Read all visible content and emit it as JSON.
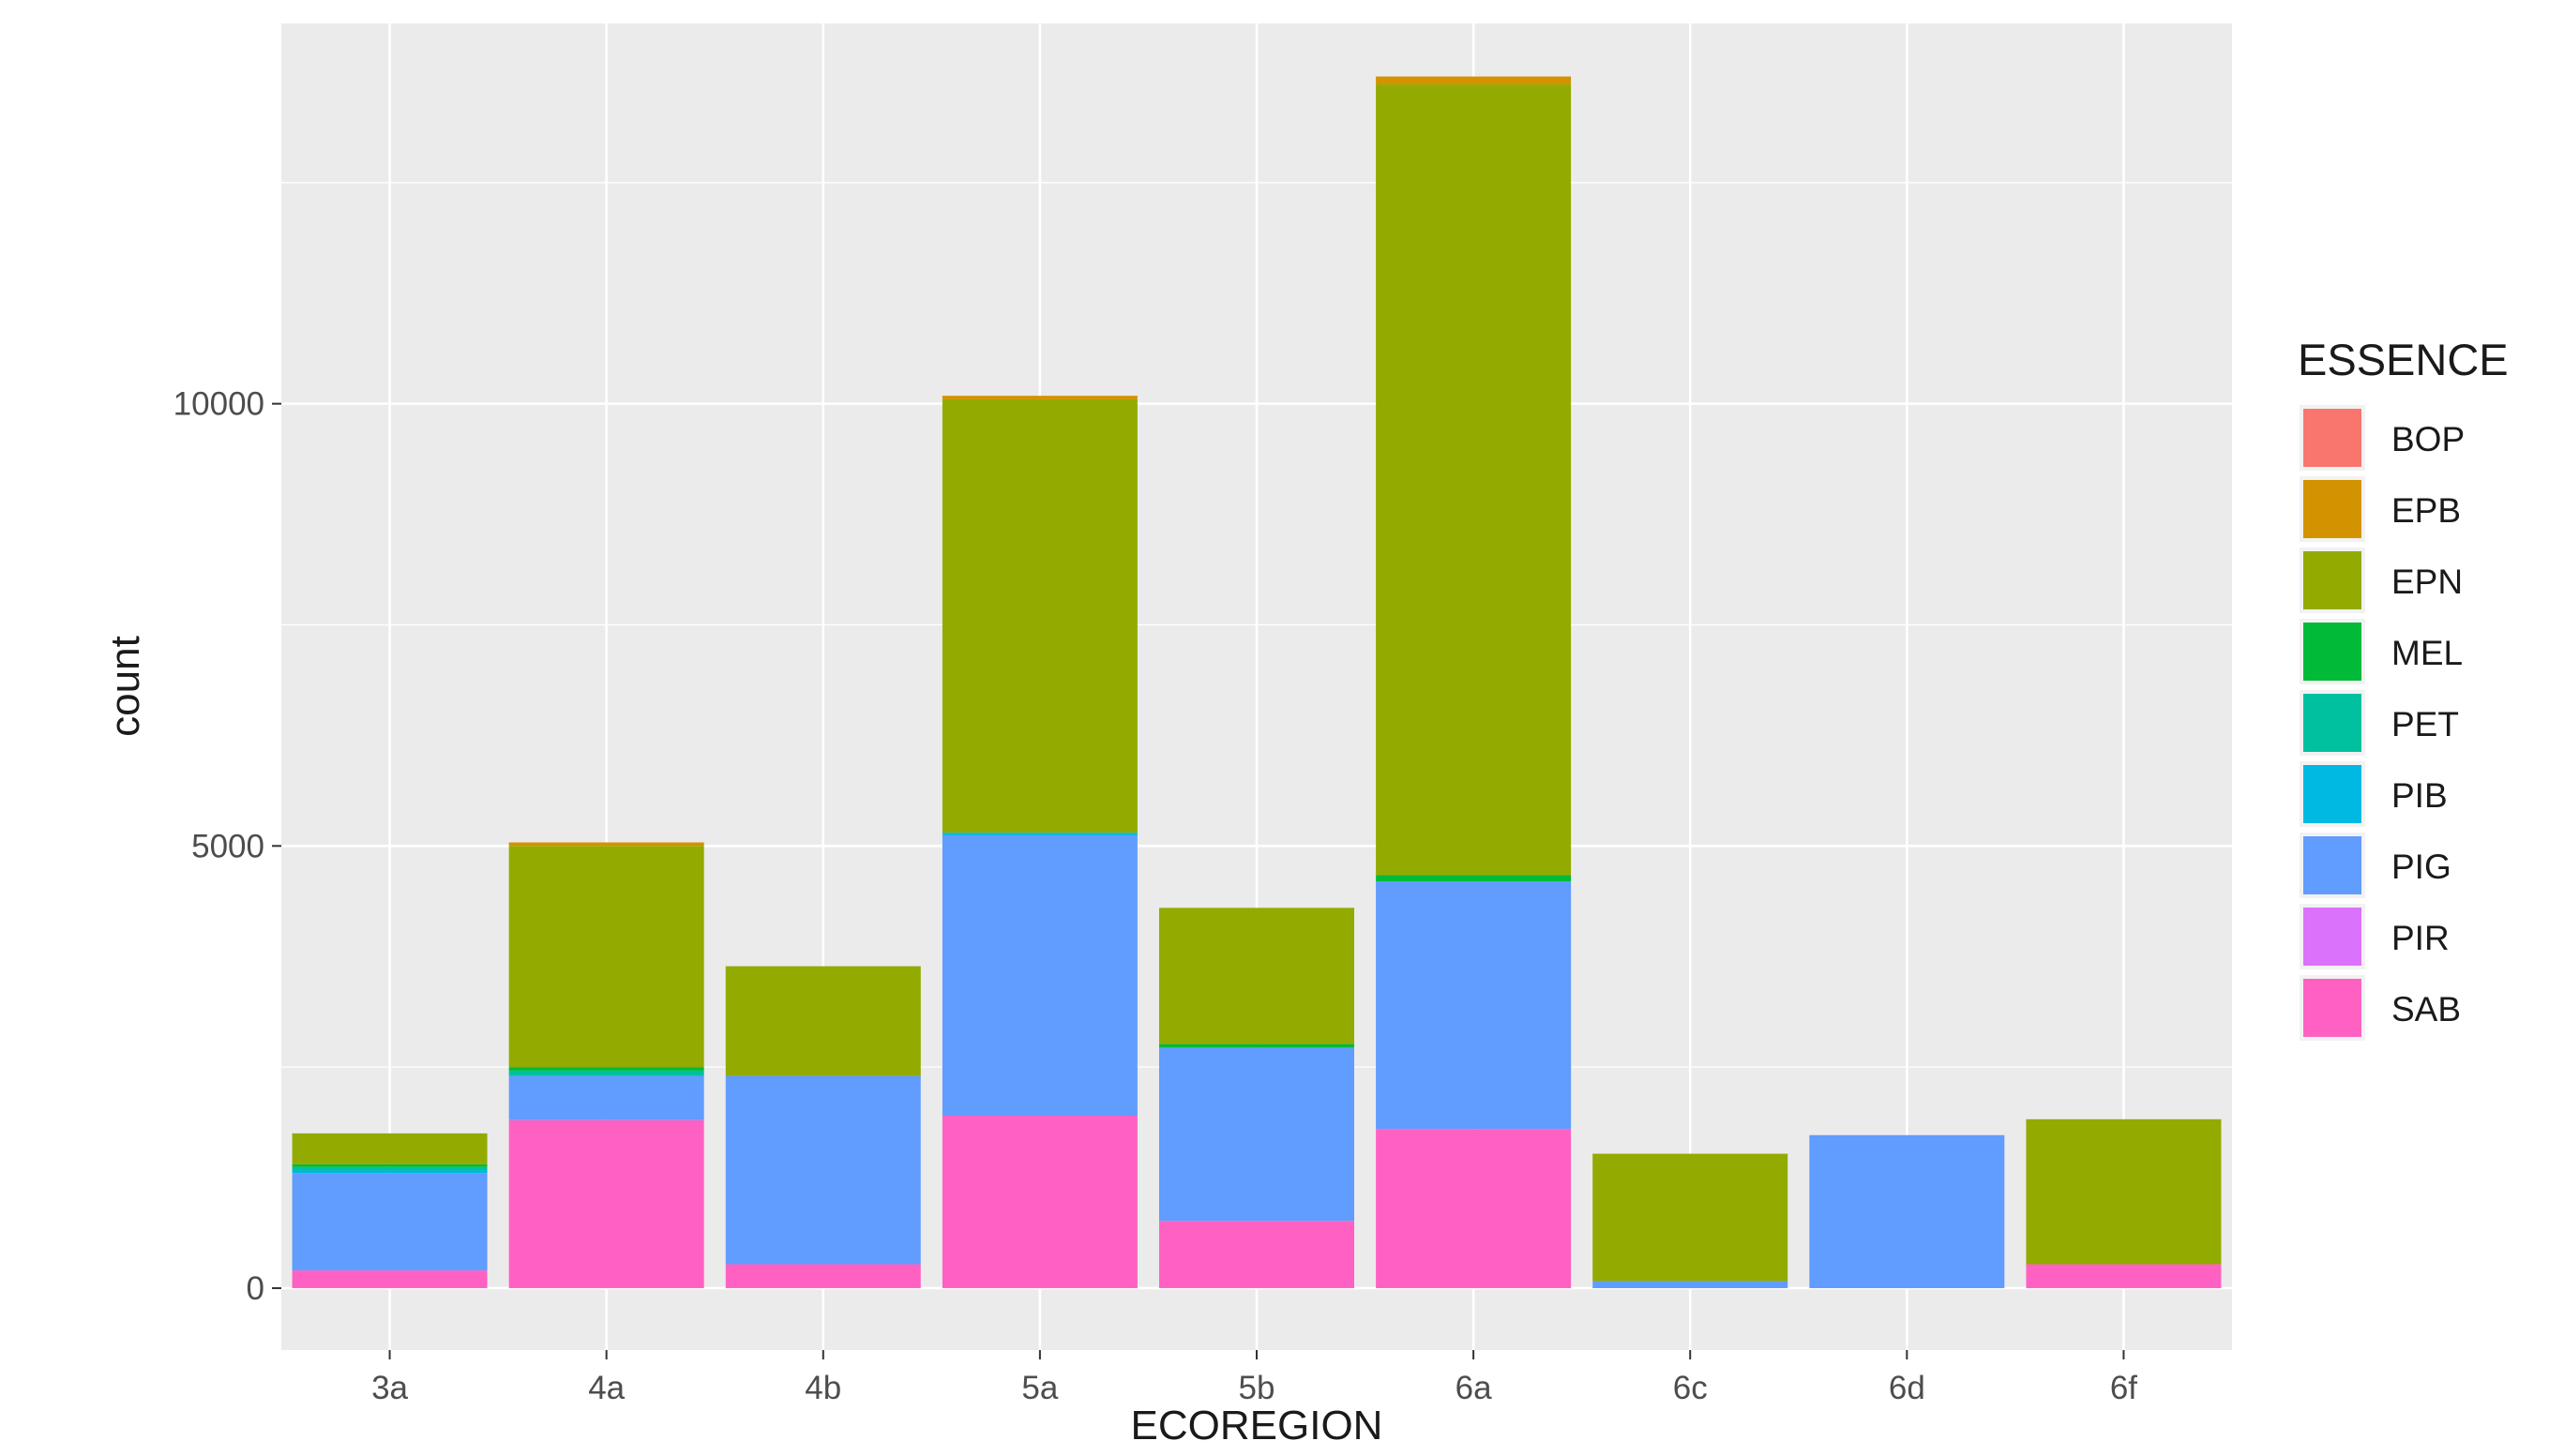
{
  "chart_data": {
    "type": "bar",
    "stacked": true,
    "title": "",
    "xlabel": "ECOREGION",
    "ylabel": "count",
    "categories": [
      "3a",
      "4a",
      "4b",
      "5a",
      "5b",
      "6a",
      "6c",
      "6d",
      "6f"
    ],
    "y_ticks": [
      0,
      5000,
      10000
    ],
    "y_tick_labels": [
      "0",
      "5000",
      "10000"
    ],
    "ylim": [
      -700,
      14300
    ],
    "grid": true,
    "legend": {
      "title": "ESSENCE",
      "position": "right",
      "entries": [
        "BOP",
        "EPB",
        "EPN",
        "MEL",
        "PET",
        "PIB",
        "PIG",
        "PIR",
        "SAB"
      ]
    },
    "colors": {
      "BOP": "#F8766D",
      "EPB": "#D39200",
      "EPN": "#93AA00",
      "MEL": "#00BA38",
      "PET": "#00C19F",
      "PIB": "#00B9E3",
      "PIG": "#619CFF",
      "PIR": "#DB72FB",
      "SAB": "#FF61C3"
    },
    "series": [
      {
        "name": "SAB",
        "values": [
          200,
          1900,
          270,
          1950,
          760,
          1800,
          0,
          0,
          270
        ]
      },
      {
        "name": "PIR",
        "values": [
          0,
          0,
          0,
          0,
          0,
          0,
          0,
          0,
          0
        ]
      },
      {
        "name": "PIG",
        "values": [
          1100,
          500,
          2130,
          3170,
          1960,
          2800,
          80,
          1730,
          0
        ]
      },
      {
        "name": "PIB",
        "values": [
          30,
          0,
          0,
          30,
          0,
          0,
          0,
          0,
          0
        ]
      },
      {
        "name": "PET",
        "values": [
          40,
          60,
          0,
          0,
          0,
          0,
          0,
          0,
          0
        ]
      },
      {
        "name": "MEL",
        "values": [
          30,
          40,
          0,
          0,
          40,
          70,
          0,
          0,
          0
        ]
      },
      {
        "name": "EPN",
        "values": [
          350,
          2500,
          1240,
          4900,
          1540,
          8940,
          1440,
          0,
          1640
        ]
      },
      {
        "name": "EPB",
        "values": [
          0,
          40,
          0,
          40,
          0,
          90,
          0,
          0,
          0
        ]
      },
      {
        "name": "BOP",
        "values": [
          0,
          0,
          0,
          0,
          0,
          0,
          0,
          0,
          0
        ]
      }
    ]
  }
}
